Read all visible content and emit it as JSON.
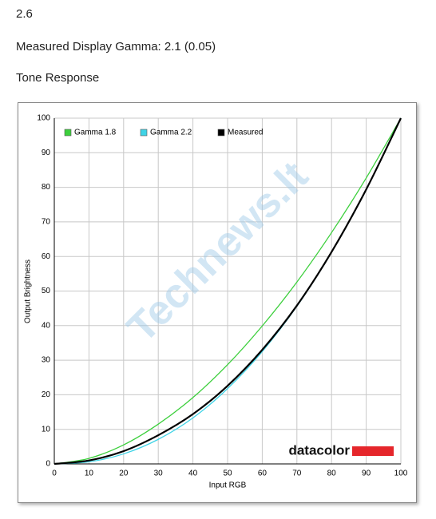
{
  "header": {
    "section": "2.6",
    "measurement": "Measured Display Gamma: 2.1 (0.05)",
    "subtitle": "Tone Response"
  },
  "watermark": "Technews.lt",
  "chart_data": {
    "type": "line",
    "x": [
      0,
      10,
      20,
      30,
      40,
      50,
      60,
      70,
      80,
      90,
      100
    ],
    "series": [
      {
        "name": "Gamma 1.8",
        "color": "#3ccf3c",
        "values": [
          0,
          1.6,
          5.5,
          11.5,
          19.2,
          28.7,
          39.9,
          52.6,
          66.9,
          82.7,
          100
        ]
      },
      {
        "name": "Gamma 2.2",
        "color": "#3fd3e6",
        "values": [
          0,
          0.6,
          2.9,
          7.1,
          13.3,
          21.8,
          32.5,
          45.6,
          61.2,
          79.3,
          100
        ]
      },
      {
        "name": "Measured",
        "color": "#000000",
        "values": [
          0,
          1.0,
          3.7,
          8.3,
          14.4,
          22.6,
          33.0,
          45.8,
          61.3,
          79.4,
          100
        ]
      }
    ],
    "xlim": [
      0,
      100
    ],
    "ylim": [
      0,
      100
    ],
    "xticks": [
      0,
      10,
      20,
      30,
      40,
      50,
      60,
      70,
      80,
      90,
      100
    ],
    "yticks": [
      0,
      10,
      20,
      30,
      40,
      50,
      60,
      70,
      80,
      90,
      100
    ],
    "xlabel": "Input RGB",
    "ylabel": "Output Brightness",
    "grid": true,
    "legend": "top-left",
    "logo": "datacolor"
  }
}
